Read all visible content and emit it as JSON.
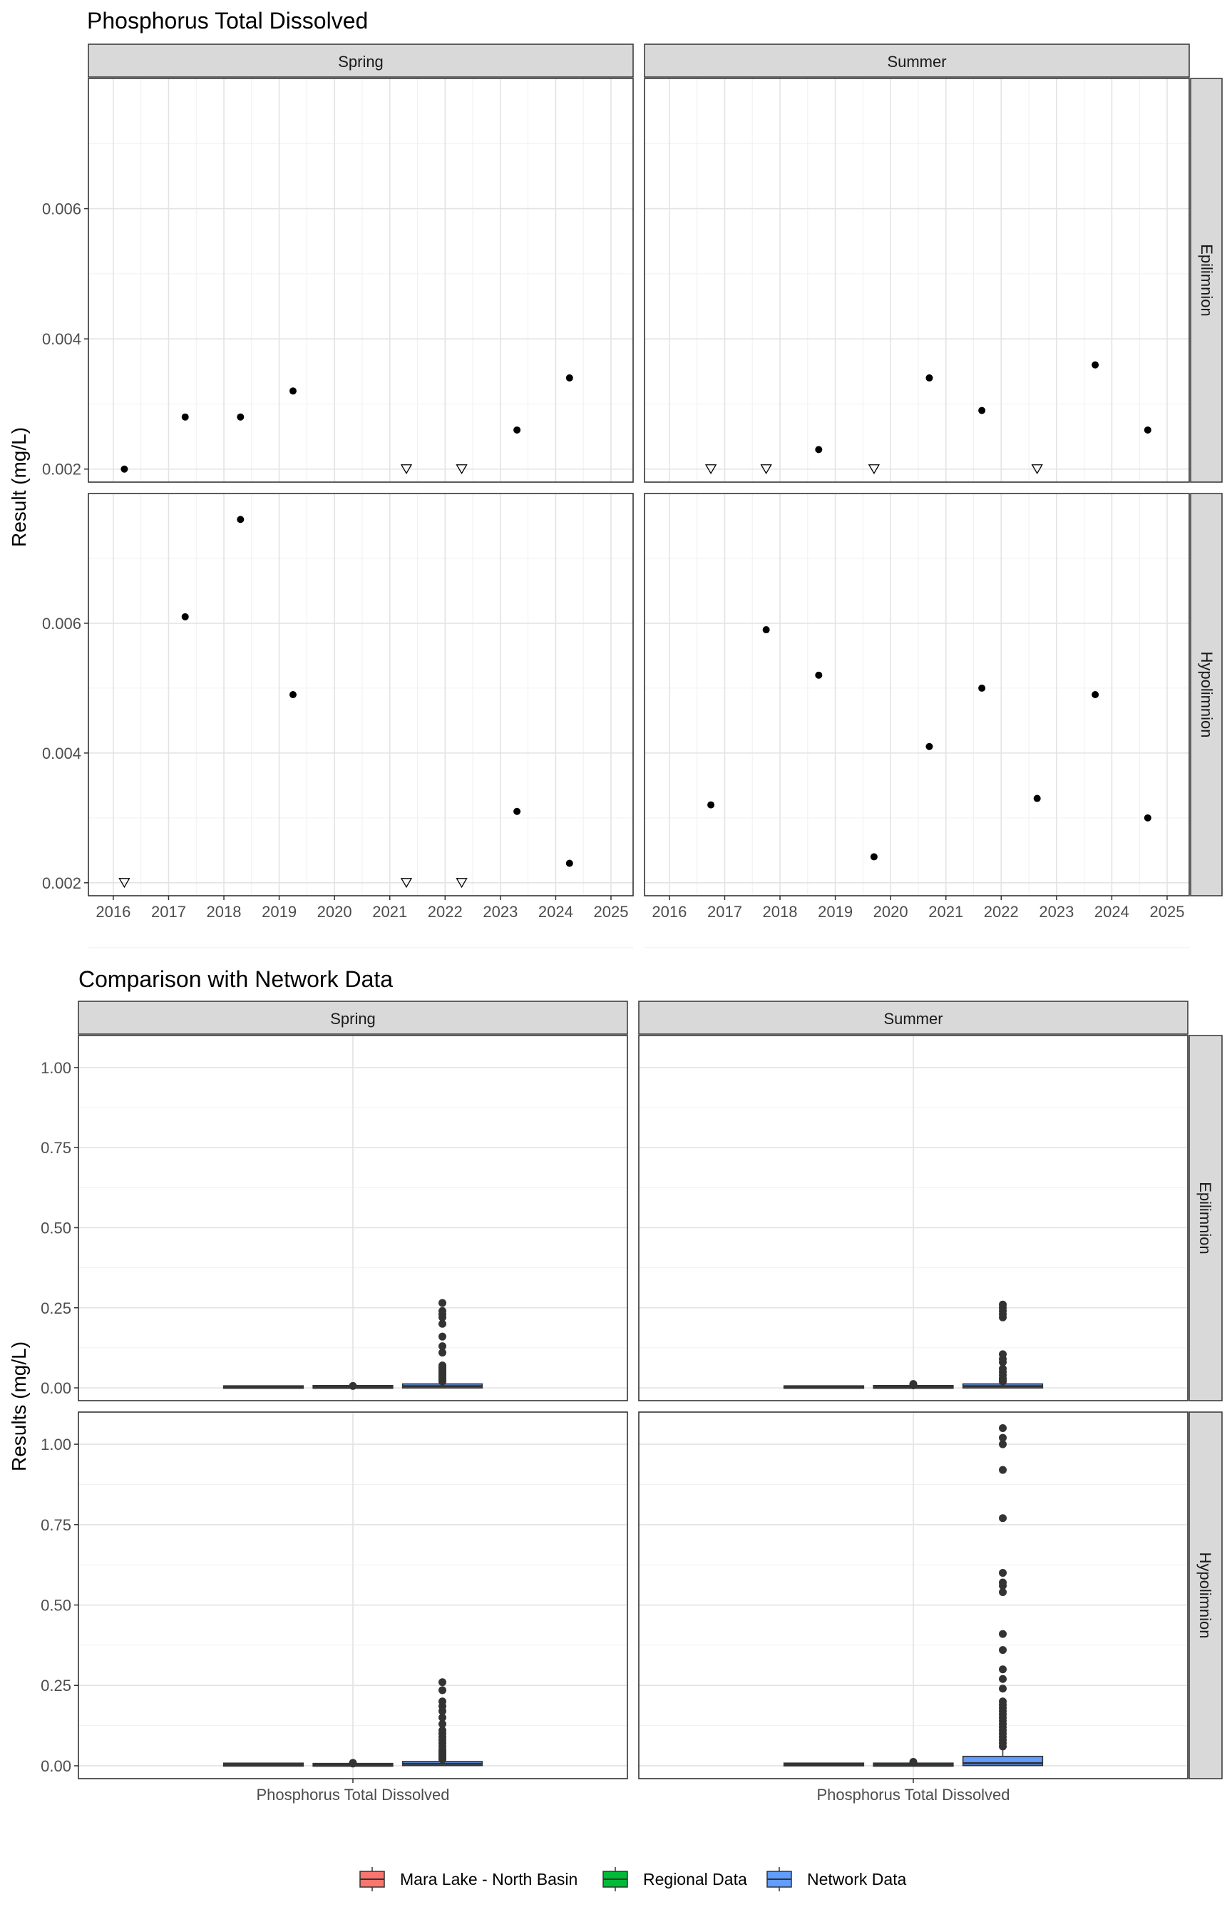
{
  "chart_data": [
    {
      "type": "scatter",
      "title": "Phosphorus Total Dissolved",
      "ylabel": "Result (mg/L)",
      "xlabel": "",
      "x_ticks": [
        "2016",
        "2017",
        "2018",
        "2019",
        "2020",
        "2021",
        "2022",
        "2023",
        "2024",
        "2025"
      ],
      "y_ticks": [
        "0.002",
        "0.004",
        "0.006"
      ],
      "ylim": [
        0.0018,
        0.008
      ],
      "xlim": [
        2015.55,
        2025.4
      ],
      "grid": true,
      "col_facets": [
        "Spring",
        "Summer"
      ],
      "row_facets": [
        "Epilimnion",
        "Hypolimnion"
      ],
      "marker_legend": {
        "detected": "filled circle",
        "below_detection_limit": "open triangle"
      },
      "panels": [
        {
          "season": "Spring",
          "layer": "Epilimnion",
          "points": [
            [
              2016.2,
              0.002
            ],
            [
              2017.3,
              0.0028
            ],
            [
              2018.3,
              0.0028
            ],
            [
              2019.25,
              0.0032
            ],
            [
              2023.3,
              0.0026
            ],
            [
              2024.25,
              0.0034
            ]
          ],
          "below_detection": [
            [
              2021.3,
              0.002
            ],
            [
              2022.3,
              0.002
            ]
          ]
        },
        {
          "season": "Summer",
          "layer": "Epilimnion",
          "points": [
            [
              2018.7,
              0.0023
            ],
            [
              2020.7,
              0.0034
            ],
            [
              2021.65,
              0.0029
            ],
            [
              2023.7,
              0.0036
            ],
            [
              2024.65,
              0.0026
            ]
          ],
          "below_detection": [
            [
              2016.75,
              0.002
            ],
            [
              2017.75,
              0.002
            ],
            [
              2019.7,
              0.002
            ],
            [
              2022.65,
              0.002
            ]
          ]
        },
        {
          "season": "Spring",
          "layer": "Hypolimnion",
          "points": [
            [
              2017.3,
              0.0061
            ],
            [
              2018.3,
              0.0076
            ],
            [
              2019.25,
              0.0049
            ],
            [
              2023.3,
              0.0031
            ],
            [
              2024.25,
              0.0023
            ]
          ],
          "below_detection": [
            [
              2016.2,
              0.002
            ],
            [
              2021.3,
              0.002
            ],
            [
              2022.3,
              0.002
            ]
          ]
        },
        {
          "season": "Summer",
          "layer": "Hypolimnion",
          "points": [
            [
              2016.75,
              0.0032
            ],
            [
              2017.75,
              0.0059
            ],
            [
              2018.7,
              0.0052
            ],
            [
              2019.7,
              0.0024
            ],
            [
              2020.7,
              0.0041
            ],
            [
              2021.65,
              0.005
            ],
            [
              2022.65,
              0.0033
            ],
            [
              2023.7,
              0.0049
            ],
            [
              2024.65,
              0.003
            ]
          ],
          "below_detection": []
        }
      ]
    },
    {
      "type": "box",
      "title": "Comparison with Network Data",
      "ylabel": "Results (mg/L)",
      "xlabel": "",
      "x_category": "Phosphorus Total Dissolved",
      "y_ticks": [
        "0.00",
        "0.25",
        "0.50",
        "0.75",
        "1.00"
      ],
      "ylim": [
        -0.04,
        1.1
      ],
      "grid": true,
      "col_facets": [
        "Spring",
        "Summer"
      ],
      "row_facets": [
        "Epilimnion",
        "Hypolimnion"
      ],
      "legend_position": "bottom",
      "groups": [
        {
          "name": "Mara Lake - North Basin",
          "color": "#f8766d"
        },
        {
          "name": "Regional Data",
          "color": "#00ba38"
        },
        {
          "name": "Network Data",
          "color": "#619cff"
        }
      ],
      "panels": [
        {
          "season": "Spring",
          "layer": "Epilimnion",
          "boxes": [
            {
              "group": "Mara Lake - North Basin",
              "q1": 0.002,
              "median": 0.0025,
              "q3": 0.003,
              "whisker_low": 0.002,
              "whisker_high": 0.0034,
              "outliers": []
            },
            {
              "group": "Regional Data",
              "q1": 0.002,
              "median": 0.003,
              "q3": 0.004,
              "whisker_low": 0.001,
              "whisker_high": 0.006,
              "outliers": [
                0.006
              ]
            },
            {
              "group": "Network Data",
              "q1": 0.003,
              "median": 0.005,
              "q3": 0.009,
              "whisker_low": 0.001,
              "whisker_high": 0.018,
              "outliers": [
                0.02,
                0.025,
                0.03,
                0.035,
                0.04,
                0.045,
                0.05,
                0.055,
                0.06,
                0.065,
                0.07,
                0.11,
                0.13,
                0.16,
                0.2,
                0.22,
                0.23,
                0.24,
                0.265
              ]
            }
          ]
        },
        {
          "season": "Summer",
          "layer": "Epilimnion",
          "boxes": [
            {
              "group": "Mara Lake - North Basin",
              "q1": 0.002,
              "median": 0.0025,
              "q3": 0.003,
              "whisker_low": 0.002,
              "whisker_high": 0.0036,
              "outliers": []
            },
            {
              "group": "Regional Data",
              "q1": 0.002,
              "median": 0.003,
              "q3": 0.004,
              "whisker_low": 0.001,
              "whisker_high": 0.006,
              "outliers": [
                0.008,
                0.01,
                0.012
              ]
            },
            {
              "group": "Network Data",
              "q1": 0.003,
              "median": 0.005,
              "q3": 0.009,
              "whisker_low": 0.001,
              "whisker_high": 0.018,
              "outliers": [
                0.02,
                0.025,
                0.03,
                0.04,
                0.05,
                0.06,
                0.08,
                0.09,
                0.105,
                0.22,
                0.23,
                0.24,
                0.25,
                0.26
              ]
            }
          ]
        },
        {
          "season": "Spring",
          "layer": "Hypolimnion",
          "boxes": [
            {
              "group": "Mara Lake - North Basin",
              "q1": 0.0023,
              "median": 0.0031,
              "q3": 0.0049,
              "whisker_low": 0.002,
              "whisker_high": 0.0076,
              "outliers": []
            },
            {
              "group": "Regional Data",
              "q1": 0.002,
              "median": 0.003,
              "q3": 0.004,
              "whisker_low": 0.001,
              "whisker_high": 0.006,
              "outliers": [
                0.007,
                0.009
              ]
            },
            {
              "group": "Network Data",
              "q1": 0.004,
              "median": 0.006,
              "q3": 0.01,
              "whisker_low": 0.001,
              "whisker_high": 0.019,
              "outliers": [
                0.02,
                0.025,
                0.03,
                0.035,
                0.04,
                0.045,
                0.05,
                0.06,
                0.07,
                0.08,
                0.09,
                0.1,
                0.11,
                0.13,
                0.15,
                0.17,
                0.185,
                0.2,
                0.235,
                0.26
              ]
            }
          ]
        },
        {
          "season": "Summer",
          "layer": "Hypolimnion",
          "boxes": [
            {
              "group": "Mara Lake - North Basin",
              "q1": 0.003,
              "median": 0.0041,
              "q3": 0.005,
              "whisker_low": 0.0024,
              "whisker_high": 0.0059,
              "outliers": []
            },
            {
              "group": "Regional Data",
              "q1": 0.002,
              "median": 0.003,
              "q3": 0.005,
              "whisker_low": 0.001,
              "whisker_high": 0.008,
              "outliers": [
                0.009,
                0.012
              ]
            },
            {
              "group": "Network Data",
              "q1": 0.004,
              "median": 0.008,
              "q3": 0.026,
              "whisker_low": 0.001,
              "whisker_high": 0.05,
              "outliers": [
                0.06,
                0.07,
                0.08,
                0.09,
                0.1,
                0.11,
                0.12,
                0.13,
                0.14,
                0.15,
                0.16,
                0.17,
                0.18,
                0.19,
                0.2,
                0.24,
                0.27,
                0.3,
                0.36,
                0.41,
                0.54,
                0.56,
                0.57,
                0.6,
                0.77,
                0.92,
                1.0,
                1.02,
                1.05
              ]
            }
          ]
        }
      ]
    }
  ]
}
